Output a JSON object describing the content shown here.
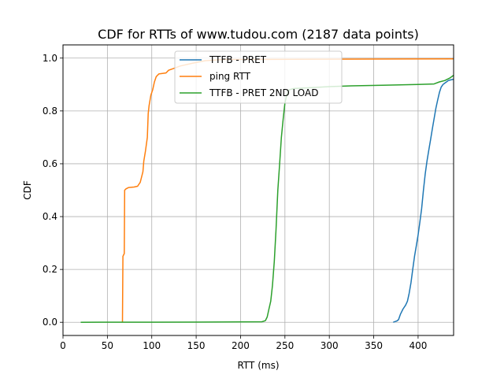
{
  "chart_data": {
    "type": "line",
    "title": "CDF for RTTs of www.tudou.com (2187 data points)",
    "xlabel": "RTT (ms)",
    "ylabel": "CDF",
    "xlim": [
      0,
      440
    ],
    "ylim": [
      -0.05,
      1.05
    ],
    "x_ticks": [
      0,
      50,
      100,
      150,
      200,
      250,
      300,
      350,
      400
    ],
    "y_ticks": [
      0.0,
      0.2,
      0.4,
      0.6,
      0.8,
      1.0
    ],
    "grid": true,
    "legend": "top-center",
    "series": [
      {
        "name": "TTFB - PRET",
        "color": "#1f77b4",
        "points": [
          [
            372,
            0
          ],
          [
            376,
            0.005
          ],
          [
            378,
            0.01
          ],
          [
            380,
            0.03
          ],
          [
            383,
            0.05
          ],
          [
            386,
            0.065
          ],
          [
            388,
            0.08
          ],
          [
            390,
            0.11
          ],
          [
            392,
            0.15
          ],
          [
            394,
            0.2
          ],
          [
            396,
            0.25
          ],
          [
            398,
            0.29
          ],
          [
            400,
            0.33
          ],
          [
            402,
            0.38
          ],
          [
            404,
            0.43
          ],
          [
            406,
            0.5
          ],
          [
            408,
            0.56
          ],
          [
            410,
            0.61
          ],
          [
            412,
            0.65
          ],
          [
            414,
            0.69
          ],
          [
            416,
            0.73
          ],
          [
            418,
            0.77
          ],
          [
            420,
            0.81
          ],
          [
            422,
            0.84
          ],
          [
            424,
            0.87
          ],
          [
            426,
            0.89
          ],
          [
            428,
            0.9
          ],
          [
            430,
            0.905
          ],
          [
            432,
            0.91
          ],
          [
            434,
            0.915
          ],
          [
            436,
            0.917
          ],
          [
            440,
            0.92
          ]
        ]
      },
      {
        "name": "ping RTT",
        "color": "#ff7f0e",
        "points": [
          [
            67,
            0
          ],
          [
            67.5,
            0.25
          ],
          [
            69,
            0.26
          ],
          [
            69.5,
            0.5
          ],
          [
            71,
            0.505
          ],
          [
            74,
            0.51
          ],
          [
            80,
            0.512
          ],
          [
            84,
            0.515
          ],
          [
            87,
            0.53
          ],
          [
            90,
            0.57
          ],
          [
            91,
            0.61
          ],
          [
            93,
            0.65
          ],
          [
            95,
            0.7
          ],
          [
            96,
            0.79
          ],
          [
            97,
            0.82
          ],
          [
            99,
            0.86
          ],
          [
            101,
            0.88
          ],
          [
            103,
            0.91
          ],
          [
            105,
            0.93
          ],
          [
            108,
            0.94
          ],
          [
            112,
            0.942
          ],
          [
            116,
            0.944
          ],
          [
            119,
            0.954
          ],
          [
            124,
            0.96
          ],
          [
            132,
            0.97
          ],
          [
            145,
            0.98
          ],
          [
            160,
            0.99
          ],
          [
            180,
            0.995
          ],
          [
            200,
            0.995
          ],
          [
            300,
            0.996
          ],
          [
            440,
            0.997
          ]
        ]
      },
      {
        "name": "TTFB - PRET 2ND LOAD",
        "color": "#2ca02c",
        "points": [
          [
            20,
            0
          ],
          [
            100,
            0.0005
          ],
          [
            180,
            0.001
          ],
          [
            224,
            0.002
          ],
          [
            228,
            0.006
          ],
          [
            230,
            0.02
          ],
          [
            232,
            0.05
          ],
          [
            234,
            0.08
          ],
          [
            236,
            0.14
          ],
          [
            238,
            0.23
          ],
          [
            240,
            0.35
          ],
          [
            242,
            0.5
          ],
          [
            244,
            0.6
          ],
          [
            246,
            0.7
          ],
          [
            248,
            0.77
          ],
          [
            250,
            0.83
          ],
          [
            252,
            0.86
          ],
          [
            255,
            0.88
          ],
          [
            260,
            0.885
          ],
          [
            280,
            0.888
          ],
          [
            300,
            0.892
          ],
          [
            325,
            0.895
          ],
          [
            360,
            0.897
          ],
          [
            400,
            0.9
          ],
          [
            418,
            0.902
          ],
          [
            424,
            0.91
          ],
          [
            430,
            0.915
          ],
          [
            436,
            0.925
          ],
          [
            440,
            0.935
          ]
        ]
      }
    ]
  }
}
